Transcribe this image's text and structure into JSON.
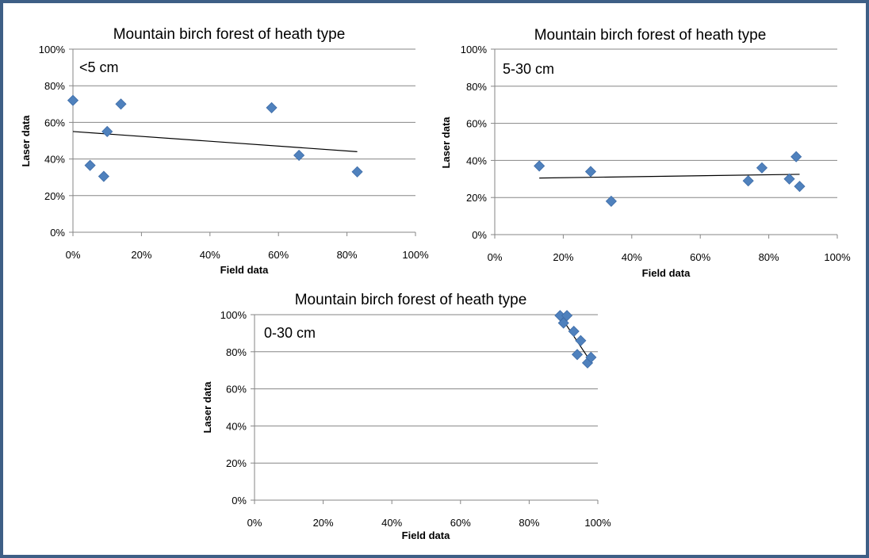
{
  "chart_data": [
    {
      "type": "scatter",
      "title": "Mountain birch forest of heath type",
      "annotation": "<5 cm",
      "xlabel": "Field data",
      "ylabel": "Laser data",
      "xlim": [
        0,
        1
      ],
      "ylim": [
        0,
        1
      ],
      "x_ticks": [
        "0%",
        "20%",
        "40%",
        "60%",
        "80%",
        "100%"
      ],
      "y_ticks": [
        "0%",
        "20%",
        "40%",
        "60%",
        "80%",
        "100%"
      ],
      "grid": true,
      "marker_color": "#4f81bd",
      "points": [
        {
          "x": 0.0,
          "y": 0.72
        },
        {
          "x": 0.05,
          "y": 0.365
        },
        {
          "x": 0.09,
          "y": 0.305
        },
        {
          "x": 0.1,
          "y": 0.55
        },
        {
          "x": 0.14,
          "y": 0.7
        },
        {
          "x": 0.58,
          "y": 0.68
        },
        {
          "x": 0.66,
          "y": 0.42
        },
        {
          "x": 0.83,
          "y": 0.33
        }
      ],
      "trendline": [
        {
          "x": 0.0,
          "y": 0.55
        },
        {
          "x": 0.83,
          "y": 0.44
        }
      ]
    },
    {
      "type": "scatter",
      "title": "Mountain birch forest of heath type",
      "annotation": "5-30 cm",
      "xlabel": "Field data",
      "ylabel": "Laser data",
      "xlim": [
        0,
        1
      ],
      "ylim": [
        0,
        1
      ],
      "x_ticks": [
        "0%",
        "20%",
        "40%",
        "60%",
        "80%",
        "100%"
      ],
      "y_ticks": [
        "0%",
        "20%",
        "40%",
        "60%",
        "80%",
        "100%"
      ],
      "grid": true,
      "marker_color": "#4f81bd",
      "points": [
        {
          "x": 0.13,
          "y": 0.37
        },
        {
          "x": 0.28,
          "y": 0.34
        },
        {
          "x": 0.34,
          "y": 0.18
        },
        {
          "x": 0.74,
          "y": 0.29
        },
        {
          "x": 0.78,
          "y": 0.36
        },
        {
          "x": 0.86,
          "y": 0.3
        },
        {
          "x": 0.88,
          "y": 0.42
        },
        {
          "x": 0.89,
          "y": 0.26
        }
      ],
      "trendline": [
        {
          "x": 0.13,
          "y": 0.305
        },
        {
          "x": 0.89,
          "y": 0.325
        }
      ]
    },
    {
      "type": "scatter",
      "title": "Mountain birch forest of heath type",
      "annotation": "0-30 cm",
      "xlabel": "Field data",
      "ylabel": "Laser data",
      "xlim": [
        0,
        1
      ],
      "ylim": [
        0,
        1
      ],
      "x_ticks": [
        "0%",
        "20%",
        "40%",
        "60%",
        "80%",
        "100%"
      ],
      "y_ticks": [
        "0%",
        "20%",
        "40%",
        "60%",
        "80%",
        "100%"
      ],
      "grid": true,
      "marker_color": "#4f81bd",
      "points": [
        {
          "x": 0.89,
          "y": 0.995
        },
        {
          "x": 0.9,
          "y": 0.955
        },
        {
          "x": 0.91,
          "y": 0.995
        },
        {
          "x": 0.93,
          "y": 0.91
        },
        {
          "x": 0.94,
          "y": 0.785
        },
        {
          "x": 0.95,
          "y": 0.86
        },
        {
          "x": 0.97,
          "y": 0.74
        },
        {
          "x": 0.98,
          "y": 0.77
        }
      ],
      "trendline": [
        {
          "x": 0.89,
          "y": 0.995
        },
        {
          "x": 0.98,
          "y": 0.745
        }
      ]
    }
  ]
}
